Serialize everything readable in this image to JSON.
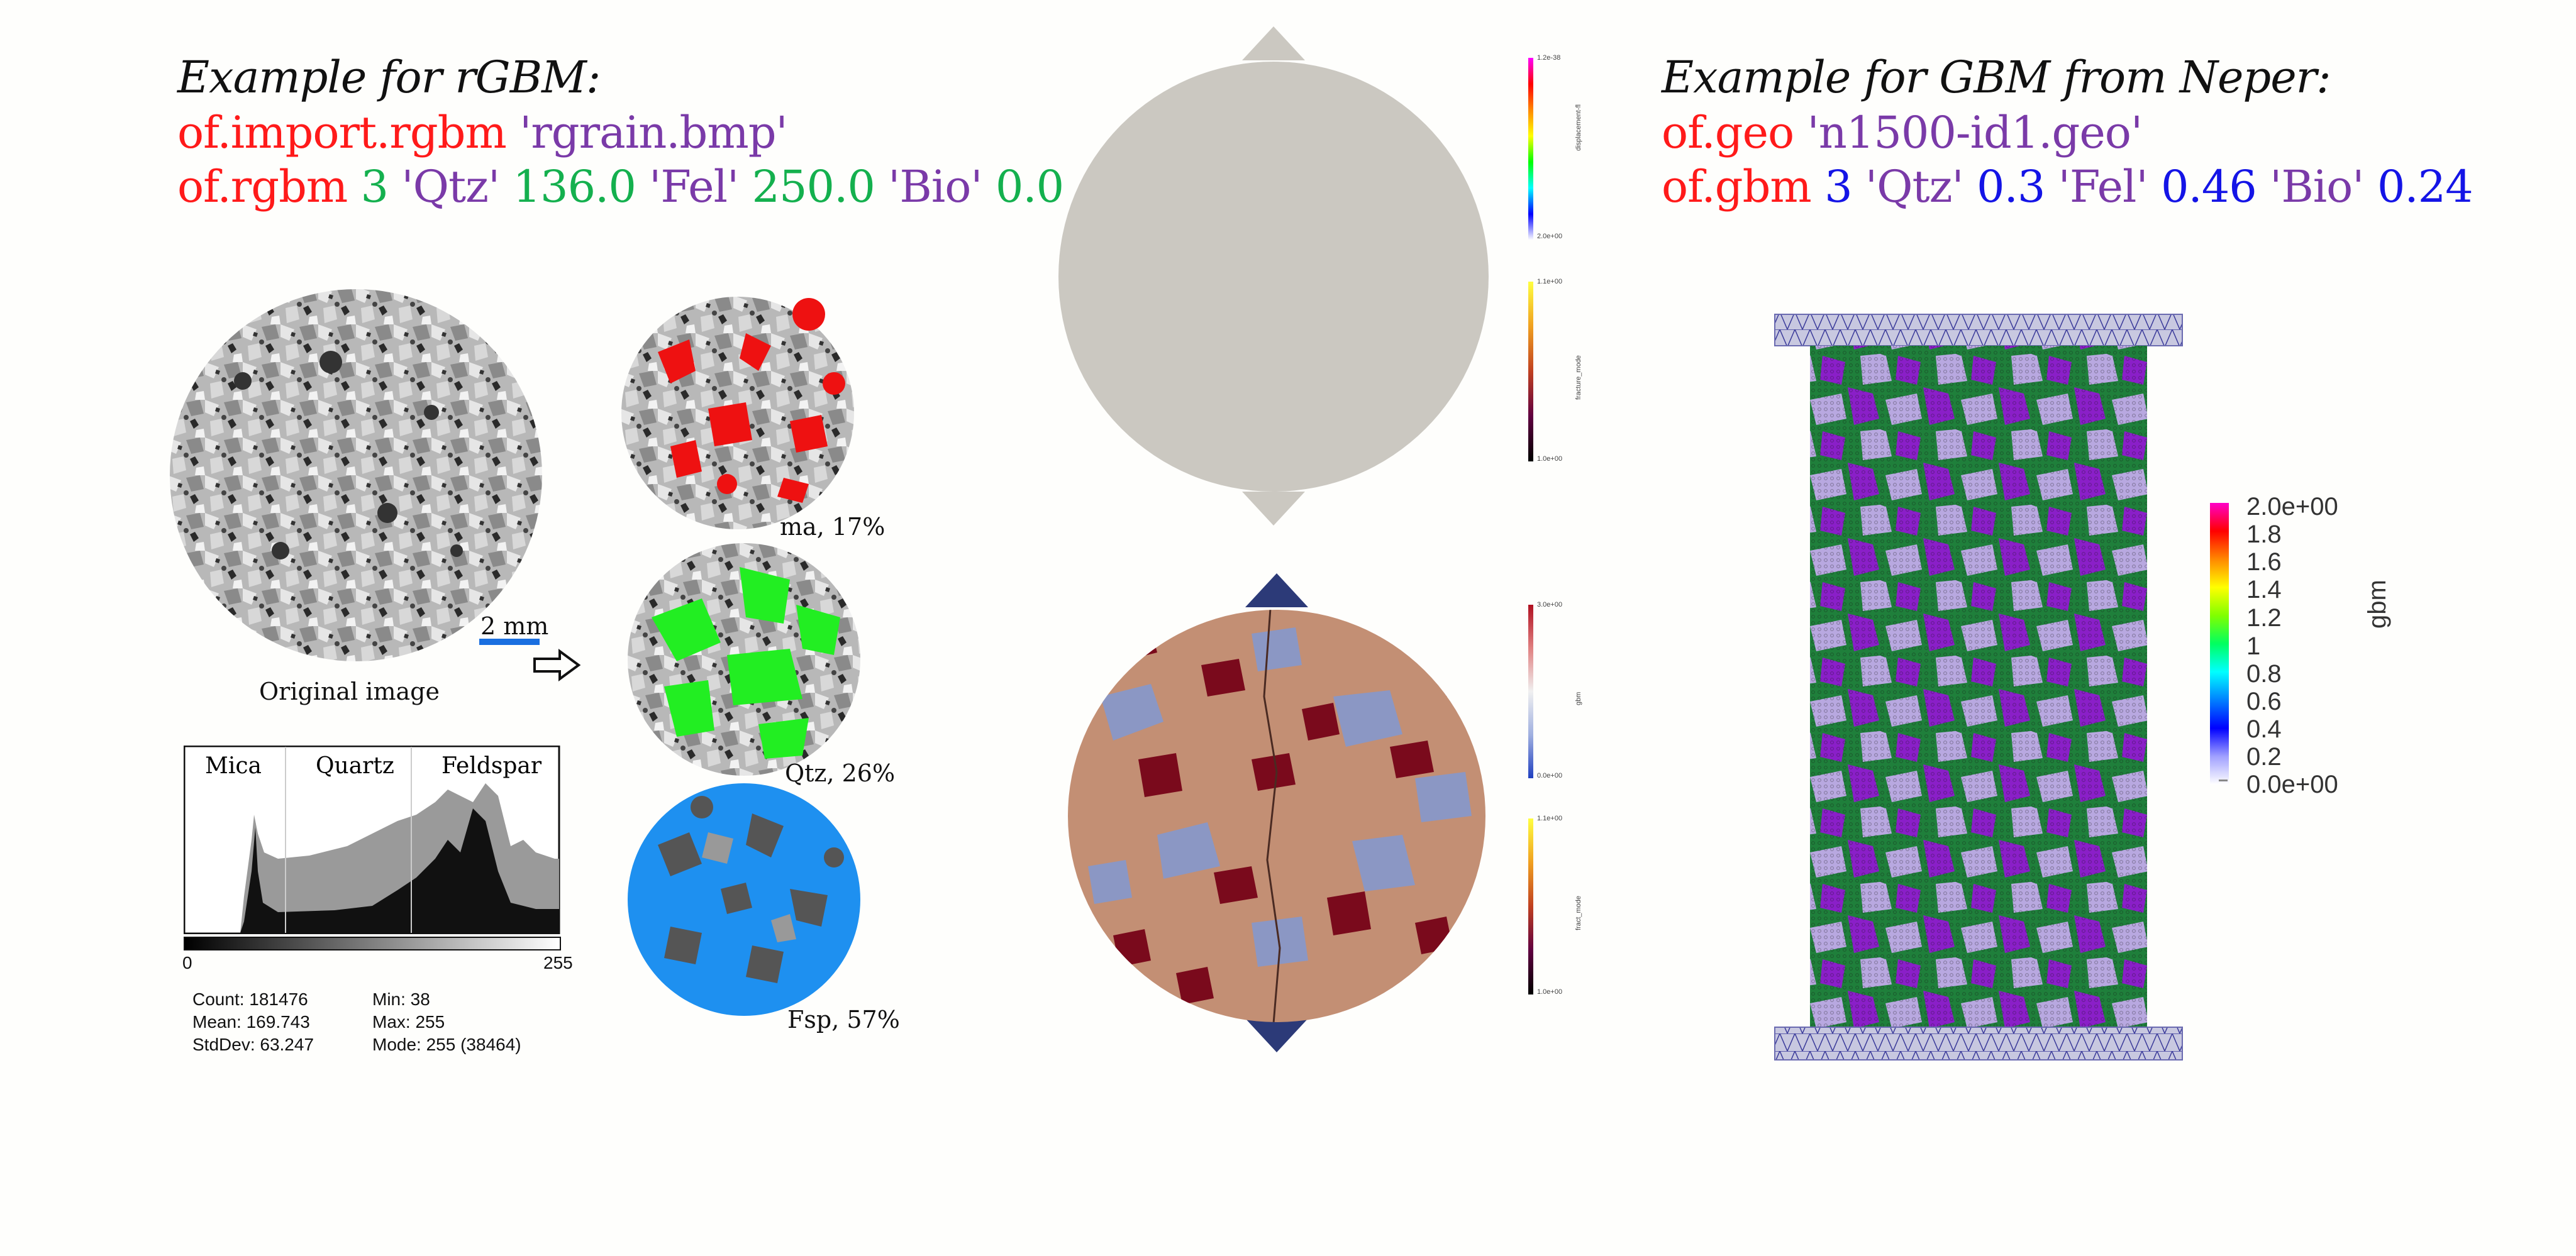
{
  "left": {
    "title": "Example for rGBM:",
    "line1": {
      "cmd": "of.import.rgbm",
      "arg": "'rgrain.bmp'"
    },
    "line2": {
      "cmd": "of.rgbm",
      "n": "3",
      "m1": "'Qtz'",
      "v1": "136.0",
      "m2": "'Fel'",
      "v2": "250.0",
      "m3": "'Bio'",
      "v3": "0.0"
    },
    "scale_label": "2 mm",
    "original_caption": "Original image",
    "histogram": {
      "labels": [
        "Mica",
        "Quartz",
        "Feldspar"
      ],
      "axis_min": "0",
      "axis_max": "255",
      "stats": {
        "count": "Count: 181476",
        "mean": "Mean: 169.743",
        "stddev": "StdDev: 63.247",
        "min": "Min: 38",
        "max": "Max: 255",
        "mode": "Mode: 255 (38464)"
      }
    },
    "phases": [
      {
        "caption": "ma, 17%",
        "color": "#ee1111"
      },
      {
        "caption": "Qtz, 26%",
        "color": "#22ee22"
      },
      {
        "caption": "Fsp, 57%",
        "color": "#1e90f0"
      }
    ]
  },
  "middle": {
    "colorbar1": {
      "max": "1.2e-38",
      "min": "2.0e+00",
      "label": "displacement-fl"
    },
    "colorbar2": {
      "max": "1.1e+00",
      "min": "1.0e+00",
      "label": "fracture_mode"
    },
    "colorbar3": {
      "max": "3.0e+00",
      "min": "0.0e+00",
      "label": "gbm"
    },
    "colorbar4": {
      "max": "1.1e+00",
      "min": "1.0e+00",
      "label": "fract_mode"
    }
  },
  "right": {
    "title": "Example for GBM from Neper:",
    "line1": {
      "cmd": "of.geo",
      "arg": "'n1500-id1.geo'"
    },
    "line2": {
      "cmd": "of.gbm",
      "n": "3",
      "m1": "'Qtz'",
      "v1": "0.3",
      "m2": "'Fel'",
      "v2": "0.46",
      "m3": "'Bio'",
      "v3": "0.24"
    },
    "colorbar": {
      "label": "gbm",
      "ticks": [
        "2.0e+00",
        "1.8",
        "1.6",
        "1.4",
        "1.2",
        "1",
        "0.8",
        "0.6",
        "0.4",
        "0.2",
        "0.0e+00"
      ]
    }
  }
}
